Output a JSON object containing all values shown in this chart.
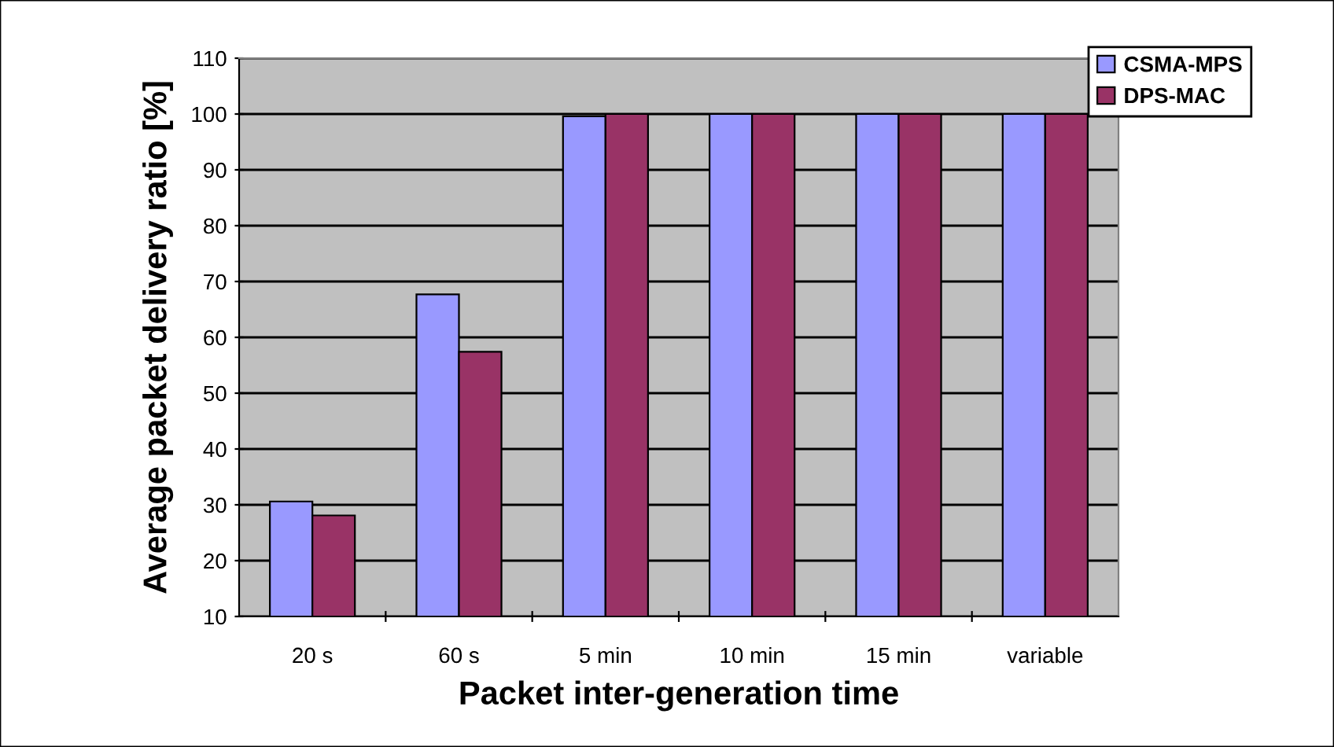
{
  "chart_data": {
    "type": "bar",
    "xlabel": "Packet inter-generation time",
    "ylabel": "Average packet delivery ratio [%]",
    "categories": [
      "20 s",
      "60 s",
      "5 min",
      "10 min",
      "15 min",
      "variable"
    ],
    "series": [
      {
        "name": "CSMA-MPS",
        "color": "#9999ff",
        "values": [
          30.6,
          67.7,
          99.6,
          100,
          100,
          100
        ]
      },
      {
        "name": "DPS-MAC",
        "color": "#993366",
        "values": [
          28.1,
          57.4,
          100,
          100,
          100,
          100
        ]
      }
    ],
    "ylim": [
      10,
      110
    ],
    "yticks": [
      10,
      20,
      30,
      40,
      50,
      60,
      70,
      80,
      90,
      100,
      110
    ],
    "grid": "y",
    "legend": "top right"
  }
}
